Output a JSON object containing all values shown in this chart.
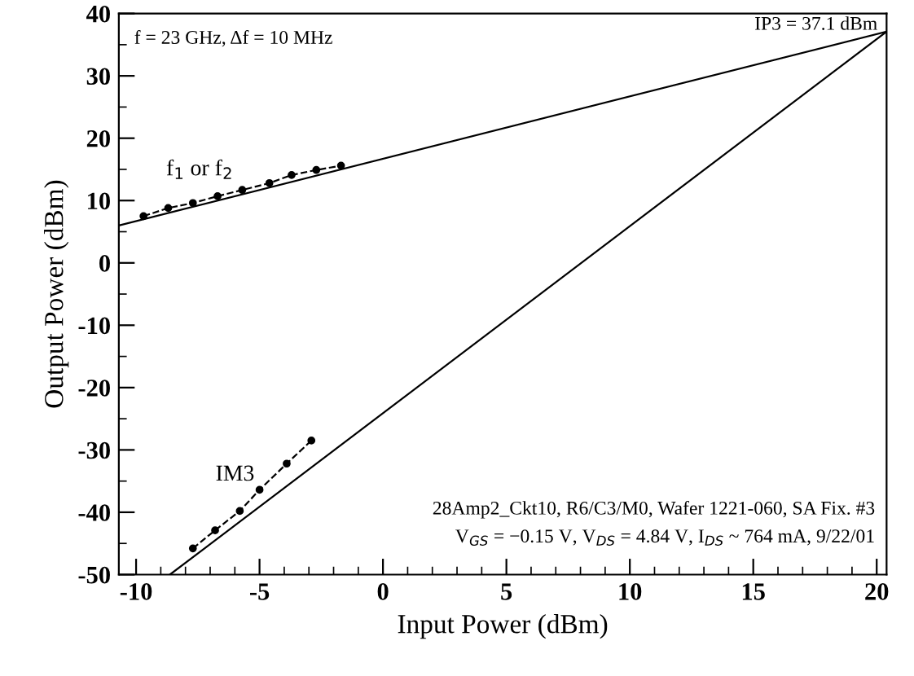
{
  "chart_data": {
    "type": "line",
    "xlabel": "Input Power (dBm)",
    "ylabel": "Output Power (dBm)",
    "xlim": [
      -10.7,
      20.4
    ],
    "ylim": [
      -50,
      40
    ],
    "xticks": [
      -10,
      -5,
      0,
      5,
      10,
      15,
      20
    ],
    "yticks": [
      -50,
      -40,
      -30,
      -20,
      -10,
      0,
      10,
      20,
      30,
      40
    ],
    "grid": false,
    "legend": false,
    "series": [
      {
        "name": "f$_{1}$ or f$_{2}$",
        "color": "#000000",
        "marker": "circle",
        "line_style": "dashed",
        "x": [
          -9.7,
          -8.7,
          -7.7,
          -6.7,
          -5.7,
          -4.6,
          -3.7,
          -2.7,
          -1.7
        ],
        "values": [
          7.5,
          8.8,
          9.6,
          10.7,
          11.7,
          12.8,
          14.1,
          14.9,
          15.6
        ]
      },
      {
        "name": "IM3",
        "color": "#000000",
        "marker": "circle",
        "line_style": "dashed",
        "x": [
          -7.7,
          -6.8,
          -5.8,
          -5.0,
          -3.9,
          -2.9
        ],
        "values": [
          -45.8,
          -42.9,
          -39.8,
          -36.4,
          -32.2,
          -28.5
        ]
      },
      {
        "color": "#000000",
        "marker": "none",
        "line_style": "solid",
        "x": [
          -10.7,
          20.4
        ],
        "values": [
          6.0,
          37.1
        ]
      },
      {
        "color": "#000000",
        "marker": "none",
        "line_style": "solid",
        "x": [
          -8.63,
          20.4
        ],
        "values": [
          -50,
          37.1
        ]
      }
    ],
    "annotations": [
      "f = 23 GHz, Δf = 10 MHz",
      {
        "text": "IP3 = 37.1 dBm",
        "x": 20.4,
        "y": 37.1
      },
      "28Amp2_Ckt10, R6/C3/M0, Wafer 1221-060, SA Fix. #3",
      "V$_{GS}$ = −0.15 V, V$_{DS}$ = 4.84 V, I$_{DS}$ ~ 764 mA, 9/22/01"
    ]
  }
}
